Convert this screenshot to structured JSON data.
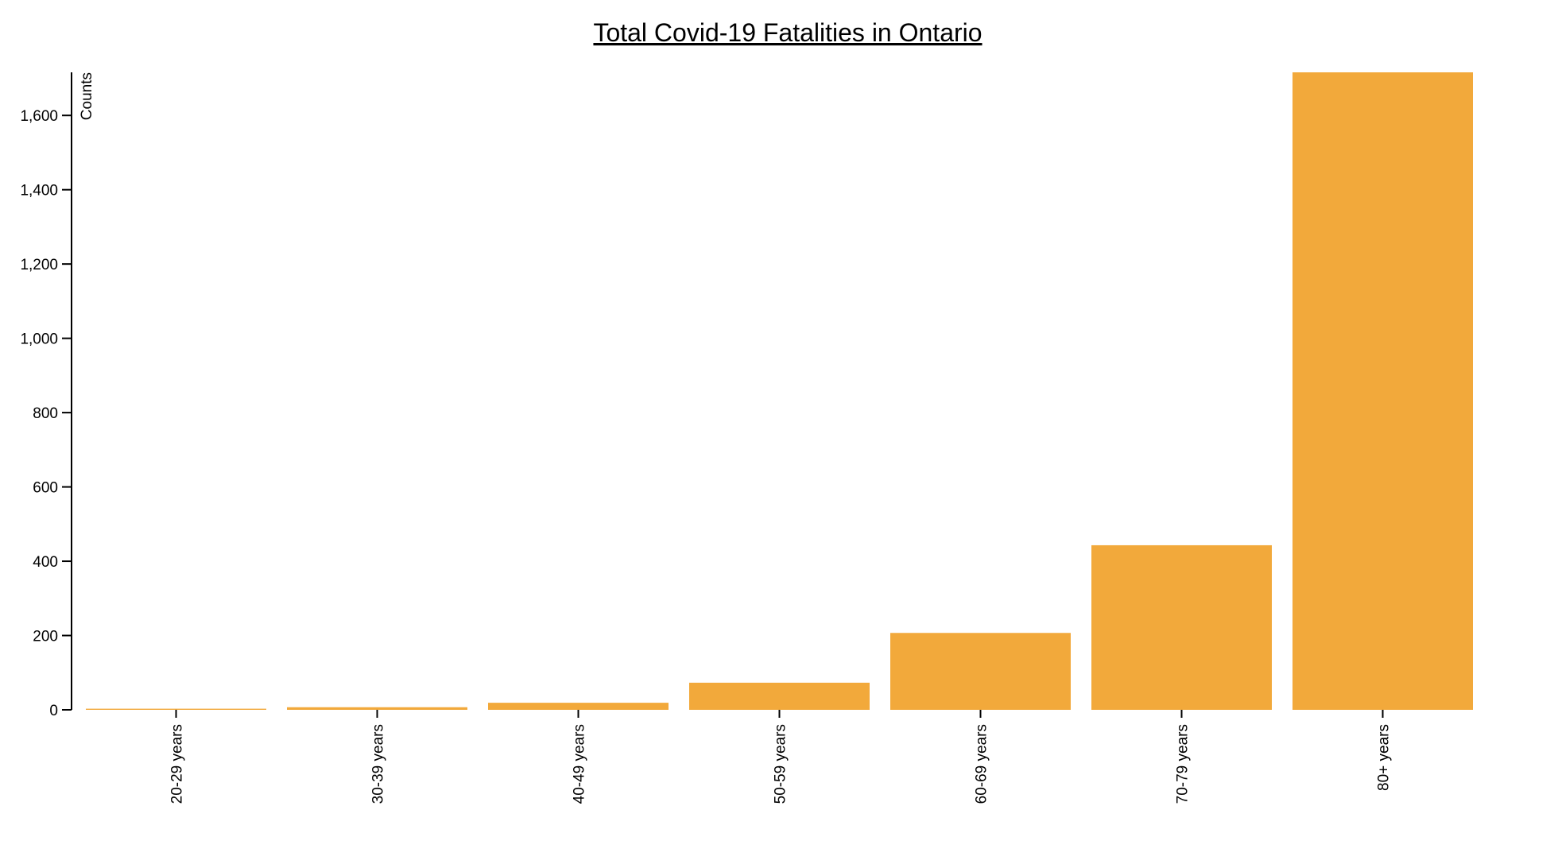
{
  "chart_data": {
    "type": "bar",
    "title": "Total Covid-19 Fatalities in Ontario",
    "xlabel": "",
    "ylabel": "Counts",
    "categories": [
      "20-29 years",
      "30-39 years",
      "40-49 years",
      "50-59 years",
      "60-69 years",
      "70-79 years",
      "80+ years"
    ],
    "values": [
      3,
      7,
      19,
      73,
      207,
      443,
      1716
    ],
    "ylim": [
      0,
      1716
    ],
    "yticks": [
      0,
      200,
      400,
      600,
      800,
      1000,
      1200,
      1400,
      1600
    ],
    "ytick_labels": [
      "0",
      "200",
      "400",
      "600",
      "800",
      "1,000",
      "1,200",
      "1,400",
      "1,600"
    ],
    "grid": false,
    "legend": "none",
    "bar_color": "#F2A93B"
  }
}
